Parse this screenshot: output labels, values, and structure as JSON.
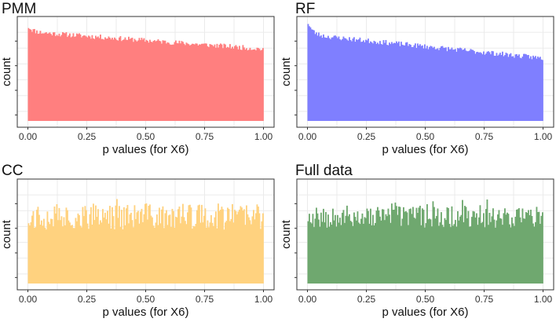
{
  "chart_data": [
    {
      "type": "bar",
      "title": "PMM",
      "xlabel": "p values (for X6)",
      "ylabel": "count",
      "xlim": [
        0,
        1
      ],
      "x_ticks": [
        "0.00",
        "0.25",
        "0.50",
        "0.75",
        "1.00"
      ],
      "y_ticks_labeled": false,
      "grid": true,
      "color": "#ff7f7f",
      "bins": 200,
      "shape": {
        "start": 0.88,
        "end": 0.71,
        "spike": 0.05,
        "noise": 0.025,
        "seed": 11
      }
    },
    {
      "type": "bar",
      "title": "RF",
      "xlabel": "p values (for X6)",
      "ylabel": "count",
      "xlim": [
        0,
        1
      ],
      "x_ticks": [
        "0.00",
        "0.25",
        "0.50",
        "0.75",
        "1.00"
      ],
      "y_ticks_labeled": false,
      "grid": true,
      "color": "#7f7fff",
      "bins": 200,
      "shape": {
        "start": 0.85,
        "end": 0.62,
        "spike": 0.12,
        "noise": 0.025,
        "seed": 23
      }
    },
    {
      "type": "bar",
      "title": "CC",
      "xlabel": "p values (for X6)",
      "ylabel": "count",
      "xlim": [
        0,
        1
      ],
      "x_ticks": [
        "0.00",
        "0.25",
        "0.50",
        "0.75",
        "1.00"
      ],
      "y_ticks_labeled": false,
      "grid": true,
      "color": "#ffd27f",
      "bins": 200,
      "shape": {
        "start": 0.66,
        "end": 0.66,
        "spike": 0.0,
        "noise": 0.13,
        "seed": 37
      }
    },
    {
      "type": "bar",
      "title": "Full data",
      "xlabel": "p values (for X6)",
      "ylabel": "count",
      "xlim": [
        0,
        1
      ],
      "x_ticks": [
        "0.00",
        "0.25",
        "0.50",
        "0.75",
        "1.00"
      ],
      "y_ticks_labeled": false,
      "grid": true,
      "color": "#6fa86f",
      "bins": 200,
      "shape": {
        "start": 0.66,
        "end": 0.66,
        "spike": 0.0,
        "noise": 0.11,
        "seed": 53
      }
    }
  ]
}
